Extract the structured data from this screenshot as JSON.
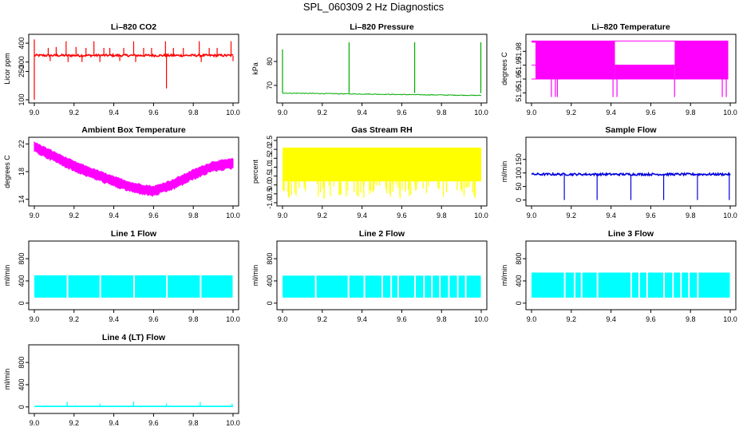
{
  "window": {
    "title": "SPL_060309  2 Hz Diagnostics"
  },
  "chart_data": [
    {
      "id": "co2",
      "type": "line",
      "title": "Li–820 CO2",
      "ylabel": "Licor ppm",
      "color": "#ff0000",
      "xlim": [
        9.0,
        10.0
      ],
      "ylim": [
        100,
        430
      ],
      "x_ticks": [
        9.0,
        9.2,
        9.4,
        9.6,
        9.8,
        10.0
      ],
      "x_tick_labels": [
        "9.0",
        "9.2",
        "9.4",
        "9.6",
        "9.8",
        "10.0"
      ],
      "y_ticks": [
        100,
        250,
        300,
        400
      ],
      "y_tick_labels": [
        "100",
        "250",
        "300",
        "400"
      ],
      "baseline": 335,
      "noise": 6,
      "up_spikes": [
        {
          "x": 9.0,
          "y": 420
        },
        {
          "x": 9.07,
          "y": 375
        },
        {
          "x": 9.11,
          "y": 380
        },
        {
          "x": 9.16,
          "y": 410
        },
        {
          "x": 9.21,
          "y": 380
        },
        {
          "x": 9.26,
          "y": 375
        },
        {
          "x": 9.3,
          "y": 410
        },
        {
          "x": 9.35,
          "y": 375
        },
        {
          "x": 9.38,
          "y": 375
        },
        {
          "x": 9.45,
          "y": 375
        },
        {
          "x": 9.5,
          "y": 410
        },
        {
          "x": 9.55,
          "y": 375
        },
        {
          "x": 9.59,
          "y": 375
        },
        {
          "x": 9.66,
          "y": 410
        },
        {
          "x": 9.7,
          "y": 375
        },
        {
          "x": 9.75,
          "y": 375
        },
        {
          "x": 9.83,
          "y": 410
        },
        {
          "x": 9.88,
          "y": 375
        },
        {
          "x": 9.92,
          "y": 375
        },
        {
          "x": 9.99,
          "y": 410
        }
      ],
      "down_spikes": [
        {
          "x": 9.0,
          "y": 100
        },
        {
          "x": 9.08,
          "y": 305
        },
        {
          "x": 9.17,
          "y": 300
        },
        {
          "x": 9.24,
          "y": 300
        },
        {
          "x": 9.33,
          "y": 300
        },
        {
          "x": 9.43,
          "y": 305
        },
        {
          "x": 9.51,
          "y": 300
        },
        {
          "x": 9.665,
          "y": 160
        },
        {
          "x": 9.84,
          "y": 300
        },
        {
          "x": 10.0,
          "y": 305
        }
      ]
    },
    {
      "id": "pressure",
      "type": "line",
      "title": "Li–820 Pressure",
      "ylabel": "kPa",
      "color": "#00aa00",
      "xlim": [
        9.0,
        10.0
      ],
      "ylim": [
        64,
        90
      ],
      "x_ticks": [
        9.0,
        9.2,
        9.4,
        9.6,
        9.8,
        10.0
      ],
      "x_tick_labels": [
        "9.0",
        "9.2",
        "9.4",
        "9.6",
        "9.8",
        "10.0"
      ],
      "y_ticks": [
        70,
        80
      ],
      "y_tick_labels": [
        "70",
        "80"
      ],
      "baseline_start": 66.8,
      "baseline_end": 65.8,
      "noise": 0.15,
      "up_spikes": [
        {
          "x": 9.0,
          "y": 85
        },
        {
          "x": 9.335,
          "y": 88
        },
        {
          "x": 9.665,
          "y": 88
        },
        {
          "x": 9.998,
          "y": 88
        }
      ]
    },
    {
      "id": "licor-temp",
      "type": "line",
      "title": "Li–820 Temperature",
      "ylabel": "degrees C",
      "color": "#ff00ff",
      "xlim": [
        9.0,
        10.0
      ],
      "ylim": [
        51.945,
        51.99
      ],
      "x_ticks": [
        9.0,
        9.2,
        9.4,
        9.6,
        9.8,
        10.0
      ],
      "x_tick_labels": [
        "9.0",
        "9.2",
        "9.4",
        "9.6",
        "9.8",
        "10.0"
      ],
      "y_ticks": [
        51.95,
        51.96,
        51.97,
        51.98
      ],
      "y_tick_labels": [
        "51.95",
        "51.96",
        "51.97",
        "51.98"
      ],
      "levels": [
        51.9875,
        51.97,
        51.96
      ],
      "segments": [
        {
          "x0": 9.0,
          "x1": 9.02,
          "low": 51.9875,
          "high": 51.9875
        },
        {
          "x0": 9.02,
          "x1": 9.42,
          "low": 51.96,
          "high": 51.9875
        },
        {
          "x0": 9.42,
          "x1": 9.72,
          "low": 51.96,
          "high": 51.97
        },
        {
          "x0": 9.72,
          "x1": 9.99,
          "low": 51.96,
          "high": 51.9875
        }
      ],
      "drop_min": 51.947,
      "drops": [
        9.1,
        9.12,
        9.13,
        9.41,
        9.43,
        9.72,
        9.96,
        9.98
      ]
    },
    {
      "id": "box-temp",
      "type": "line",
      "title": "Ambient Box Temperature",
      "ylabel": "degrees C",
      "color": "#ff00ff",
      "xlim": [
        9.0,
        10.0
      ],
      "ylim": [
        13.5,
        22.5
      ],
      "x_ticks": [
        9.0,
        9.2,
        9.4,
        9.6,
        9.8,
        10.0
      ],
      "x_tick_labels": [
        "9.0",
        "9.2",
        "9.4",
        "9.6",
        "9.8",
        "10.0"
      ],
      "y_ticks": [
        14,
        18,
        22
      ],
      "y_tick_labels": [
        "14",
        "18",
        "22"
      ],
      "trend": [
        {
          "x": 9.0,
          "y": 21.6
        },
        {
          "x": 9.1,
          "y": 20.2
        },
        {
          "x": 9.2,
          "y": 18.8
        },
        {
          "x": 9.3,
          "y": 17.7
        },
        {
          "x": 9.4,
          "y": 16.6
        },
        {
          "x": 9.5,
          "y": 15.7
        },
        {
          "x": 9.6,
          "y": 15.2
        },
        {
          "x": 9.7,
          "y": 16.2
        },
        {
          "x": 9.8,
          "y": 17.6
        },
        {
          "x": 9.9,
          "y": 18.8
        },
        {
          "x": 10.0,
          "y": 19.2
        }
      ],
      "band": 1.0
    },
    {
      "id": "rh",
      "type": "line",
      "title": "Gas Stream RH",
      "ylabel": "percent",
      "color": "#ffff00",
      "xlim": [
        9.0,
        10.0
      ],
      "ylim": [
        -1.0,
        2.5
      ],
      "x_ticks": [
        9.0,
        9.2,
        9.4,
        9.6,
        9.8,
        10.0
      ],
      "x_tick_labels": [
        "9.0",
        "9.2",
        "9.4",
        "9.6",
        "9.8",
        "10.0"
      ],
      "y_ticks": [
        -1.0,
        -0.5,
        0.0,
        0.5,
        1.0,
        1.5,
        2.0,
        2.5
      ],
      "y_tick_labels": [
        "-1.0",
        "-0.5",
        "0.0",
        "0.5",
        "1.0",
        "1.5",
        "2.0",
        "2.5"
      ],
      "band_high": 2.1,
      "band_low": 0.2,
      "dip_min": -0.8
    },
    {
      "id": "sample-flow",
      "type": "line",
      "title": "Sample Flow",
      "ylabel": "ml/min",
      "color": "#0000dd",
      "xlim": [
        9.0,
        10.0
      ],
      "ylim": [
        -10,
        220
      ],
      "x_ticks": [
        9.0,
        9.2,
        9.4,
        9.6,
        9.8,
        10.0
      ],
      "x_tick_labels": [
        "9.0",
        "9.2",
        "9.4",
        "9.6",
        "9.8",
        "10.0"
      ],
      "y_ticks": [
        0,
        50,
        100,
        150
      ],
      "y_tick_labels": [
        "0",
        "50",
        "100",
        "150"
      ],
      "baseline": 95,
      "noise": 4,
      "down_spikes": [
        {
          "x": 9.165,
          "y": 0
        },
        {
          "x": 9.33,
          "y": 0
        },
        {
          "x": 9.5,
          "y": 0
        },
        {
          "x": 9.665,
          "y": 0
        },
        {
          "x": 9.835,
          "y": 0
        },
        {
          "x": 9.995,
          "y": 0
        }
      ]
    },
    {
      "id": "line1",
      "type": "line",
      "title": "Line 1 Flow",
      "ylabel": "ml/min",
      "color": "#00ffff",
      "xlim": [
        9.0,
        10.0
      ],
      "ylim": [
        -60,
        1060
      ],
      "x_ticks": [
        9.0,
        9.2,
        9.4,
        9.6,
        9.8,
        10.0
      ],
      "x_tick_labels": [
        "9.0",
        "9.2",
        "9.4",
        "9.6",
        "9.8",
        "10.0"
      ],
      "y_ticks": [
        0,
        400,
        800
      ],
      "y_tick_labels": [
        "0",
        "400",
        "800"
      ],
      "band_high": 500,
      "band_low": 100,
      "gaps": [
        9.165,
        9.33,
        9.5,
        9.665,
        9.835
      ]
    },
    {
      "id": "line2",
      "type": "line",
      "title": "Line 2 Flow",
      "ylabel": "ml/min",
      "color": "#00ffff",
      "xlim": [
        9.0,
        10.0
      ],
      "ylim": [
        -60,
        1060
      ],
      "x_ticks": [
        9.0,
        9.2,
        9.4,
        9.6,
        9.8,
        10.0
      ],
      "x_tick_labels": [
        "9.0",
        "9.2",
        "9.4",
        "9.6",
        "9.8",
        "10.0"
      ],
      "y_ticks": [
        0,
        400,
        800
      ],
      "y_tick_labels": [
        "0",
        "400",
        "800"
      ],
      "band_high": 495,
      "band_low": 100,
      "gaps": [
        9.165,
        9.33,
        9.41,
        9.5,
        9.545,
        9.58,
        9.665,
        9.71,
        9.75,
        9.79,
        9.835,
        9.88,
        9.92
      ]
    },
    {
      "id": "line3",
      "type": "line",
      "title": "Line 3 Flow",
      "ylabel": "ml/min",
      "color": "#00ffff",
      "xlim": [
        9.0,
        10.0
      ],
      "ylim": [
        -60,
        1060
      ],
      "x_ticks": [
        9.0,
        9.2,
        9.4,
        9.6,
        9.8,
        10.0
      ],
      "x_tick_labels": [
        "9.0",
        "9.2",
        "9.4",
        "9.6",
        "9.8",
        "10.0"
      ],
      "y_ticks": [
        0,
        400,
        800
      ],
      "y_tick_labels": [
        "0",
        "400",
        "800"
      ],
      "band_high": 550,
      "band_low": 100,
      "gaps": [
        9.165,
        9.215,
        9.25,
        9.33,
        9.5,
        9.54,
        9.58,
        9.665,
        9.71,
        9.75,
        9.79,
        9.835
      ]
    },
    {
      "id": "line4",
      "type": "line",
      "title": "Line 4 (LT) Flow",
      "ylabel": "ml/min",
      "color": "#00ffff",
      "xlim": [
        9.0,
        10.0
      ],
      "ylim": [
        -60,
        1060
      ],
      "x_ticks": [
        9.0,
        9.2,
        9.4,
        9.6,
        9.8,
        10.0
      ],
      "x_tick_labels": [
        "9.0",
        "9.2",
        "9.4",
        "9.6",
        "9.8",
        "10.0"
      ],
      "y_ticks": [
        0,
        400,
        800
      ],
      "y_tick_labels": [
        "0",
        "400",
        "800"
      ],
      "baseline": 10,
      "up_spikes": [
        {
          "x": 9.165,
          "y": 90
        },
        {
          "x": 9.33,
          "y": 60
        },
        {
          "x": 9.5,
          "y": 100
        },
        {
          "x": 9.665,
          "y": 60
        },
        {
          "x": 9.835,
          "y": 90
        },
        {
          "x": 9.995,
          "y": 60
        }
      ]
    }
  ]
}
